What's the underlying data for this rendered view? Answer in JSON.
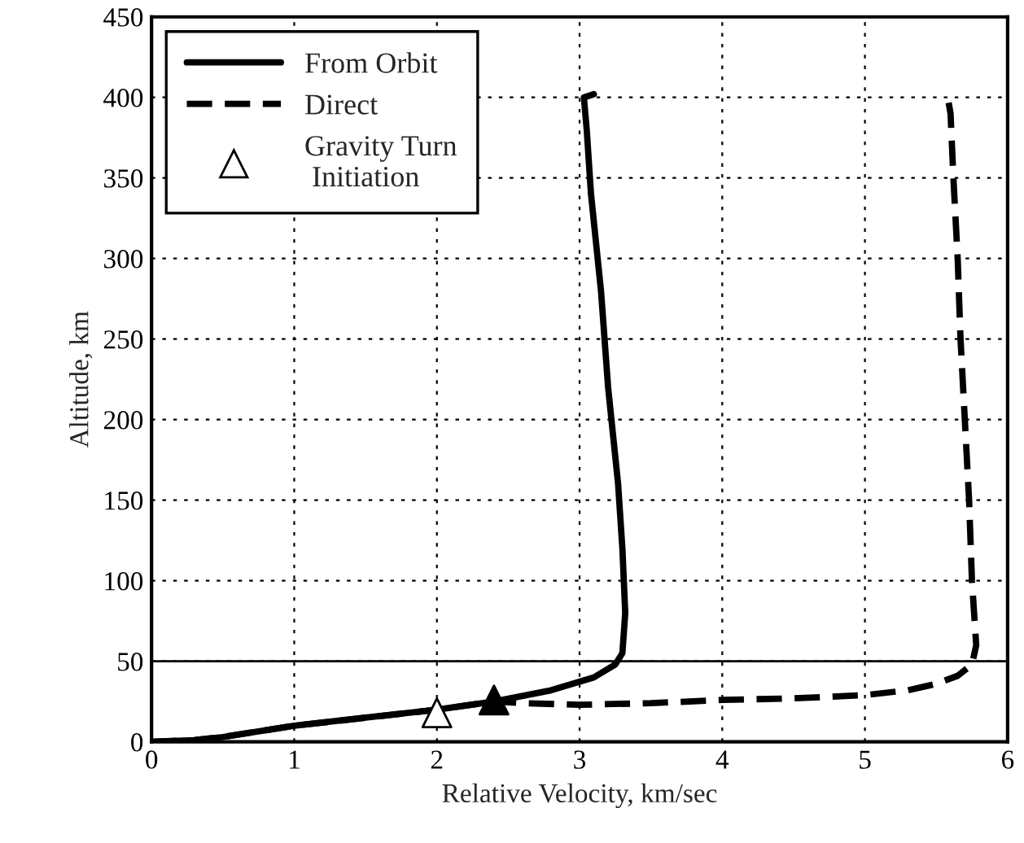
{
  "chart_data": {
    "type": "line",
    "xlabel": "Relative Velocity, km/sec",
    "ylabel": "Altitude, km",
    "xlim": [
      0,
      6
    ],
    "xticks": [
      0,
      1,
      2,
      3,
      4,
      5,
      6
    ],
    "ylim": [
      0,
      450
    ],
    "yticks": [
      0,
      50,
      100,
      150,
      200,
      250,
      300,
      350,
      400,
      450
    ],
    "grid": true,
    "legend": "top left",
    "ref_lines": [
      {
        "axis": "y",
        "value": 50,
        "color": "#000000",
        "line_style": "solid"
      }
    ],
    "series": [
      {
        "name": "From Orbit",
        "line_style": "solid",
        "color": "#000000",
        "x": [
          0,
          0.3,
          0.5,
          1,
          1.5,
          2,
          2.4,
          2.8,
          3.1,
          3.25,
          3.3,
          3.32,
          3.3,
          3.27,
          3.2,
          3.15,
          3.08,
          3.05,
          3.03,
          3.1
        ],
        "values": [
          0,
          1,
          3,
          10,
          15,
          20,
          25,
          32,
          40,
          48,
          55,
          80,
          120,
          160,
          220,
          280,
          340,
          380,
          400,
          402
        ]
      },
      {
        "name": "Direct",
        "line_style": "dashed",
        "color": "#000000",
        "x": [
          0,
          0.3,
          0.5,
          1,
          1.5,
          2,
          2.4,
          2.6,
          3,
          3.5,
          4,
          4.5,
          5,
          5.3,
          5.5,
          5.65,
          5.75,
          5.78,
          5.75,
          5.73,
          5.7,
          5.67,
          5.65,
          5.62,
          5.6,
          5.58
        ],
        "values": [
          0,
          1,
          3,
          10,
          15,
          20,
          25,
          24,
          23,
          24,
          26,
          27,
          29,
          32,
          36,
          41,
          48,
          60,
          100,
          150,
          200,
          250,
          300,
          350,
          390,
          400
        ]
      },
      {
        "name": "Gravity Turn\n Initiation",
        "type": "scatter",
        "marker": "triangle",
        "color": "#ffffff",
        "x": [
          2.0
        ],
        "values": [
          18
        ]
      },
      {
        "type": "scatter",
        "marker": "triangle",
        "color": "#000000",
        "x": [
          2.4
        ],
        "values": [
          26
        ]
      }
    ]
  }
}
